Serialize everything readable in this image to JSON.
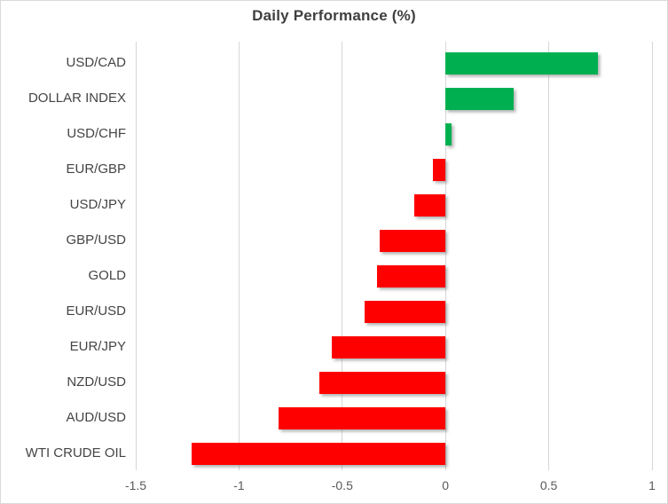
{
  "title": "Daily Performance (%)",
  "colors": {
    "positive_bar": "#00B050",
    "negative_bar": "#FF0000",
    "gridline": "#D6D6D6",
    "title_text": "#3F3F3F",
    "category_text": "#444444",
    "axis_text": "#595959",
    "frame_border": "#D9D9D9",
    "background": "#FFFFFF"
  },
  "chart_data": {
    "type": "bar",
    "orientation": "horizontal",
    "title": "Daily Performance (%)",
    "xlabel": "",
    "ylabel": "",
    "categories": [
      "USD/CAD",
      "DOLLAR INDEX",
      "USD/CHF",
      "EUR/GBP",
      "USD/JPY",
      "GBP/USD",
      "GOLD",
      "EUR/USD",
      "EUR/JPY",
      "NZD/USD",
      "AUD/USD",
      "WTI CRUDE OIL"
    ],
    "values": [
      0.74,
      0.33,
      0.03,
      -0.06,
      -0.15,
      -0.32,
      -0.33,
      -0.39,
      -0.55,
      -0.61,
      -0.81,
      -1.23
    ],
    "xlim": [
      -1.5,
      1
    ],
    "x_ticks": [
      -1.5,
      -1,
      -0.5,
      0,
      0.5,
      1
    ],
    "x_tick_labels": [
      "-1.5",
      "-1",
      "-0.5",
      "0",
      "0.5",
      "1"
    ],
    "grid": "vertical-only",
    "legend": "none",
    "bar_shadow": true
  }
}
